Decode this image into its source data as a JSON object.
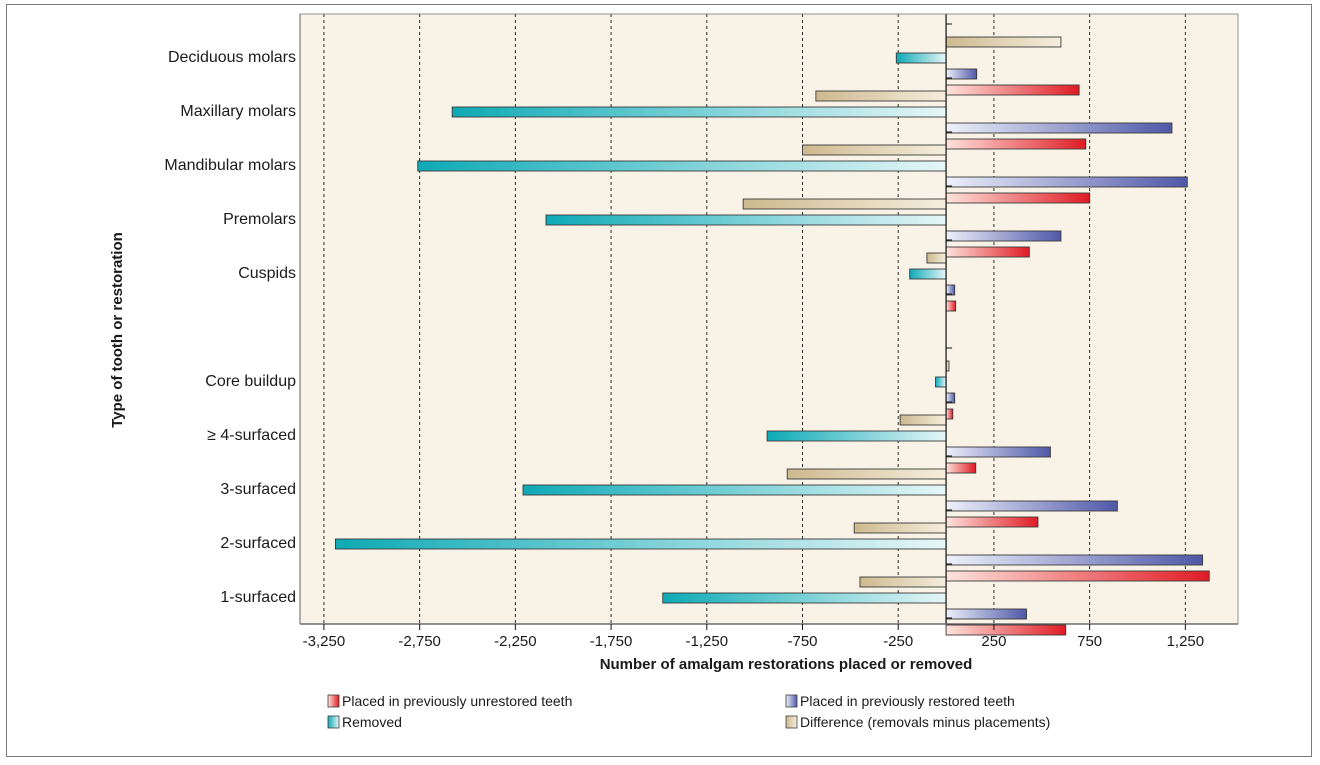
{
  "chart_data": {
    "type": "bar",
    "orientation": "horizontal",
    "xlabel": "Number of amalgam restorations placed or removed",
    "ylabel": "Type of tooth or restoration",
    "xlim": [
      -3375,
      1525
    ],
    "xticks": [
      -3250,
      -2750,
      -2250,
      -1750,
      -1250,
      -750,
      -250,
      250,
      750,
      1250
    ],
    "xtick_labels": [
      "-3,250",
      "-2,750",
      "-2,250",
      "-1,750",
      "-1,250",
      "-750",
      "-250",
      "250",
      "750",
      "1,250"
    ],
    "grid": "vertical dashed at ticks",
    "legend_position": "bottom",
    "categories": [
      {
        "label": "Deciduous molars",
        "slot": 0
      },
      {
        "label": "Maxillary molars",
        "slot": 1
      },
      {
        "label": "Mandibular molars",
        "slot": 2
      },
      {
        "label": "Premolars",
        "slot": 3
      },
      {
        "label": "Cuspids",
        "slot": 4
      },
      {
        "label": "Core buildup",
        "slot": 6
      },
      {
        "label": "≥ 4-surfaced",
        "slot": 7
      },
      {
        "label": "3-surfaced",
        "slot": 8
      },
      {
        "label": "2-surfaced",
        "slot": 9
      },
      {
        "label": "1-surfaced",
        "slot": 10
      }
    ],
    "series": [
      {
        "name": "Difference (removals minus placements)",
        "key": "difference",
        "values": [
          600,
          -680,
          -750,
          -1060,
          -100,
          15,
          -240,
          -830,
          -480,
          -450
        ]
      },
      {
        "name": "Removed",
        "key": "removed",
        "values": [
          -260,
          -2580,
          -2760,
          -2090,
          -190,
          -55,
          -935,
          -2210,
          -3190,
          -1480
        ]
      },
      {
        "name": "Placed in previously restored teeth",
        "key": "restored",
        "values": [
          160,
          1180,
          1260,
          600,
          45,
          45,
          545,
          895,
          1340,
          420
        ]
      },
      {
        "name": "Placed in previously unrestored teeth",
        "key": "unrestored",
        "values": [
          695,
          730,
          750,
          435,
          50,
          35,
          155,
          480,
          1375,
          625
        ]
      }
    ],
    "legend": [
      {
        "label": "Placed in previously unrestored teeth",
        "key": "unrestored"
      },
      {
        "label": "Placed in previously restored teeth",
        "key": "restored"
      },
      {
        "label": "Removed",
        "key": "removed"
      },
      {
        "label": "Difference (removals minus placements)",
        "key": "difference"
      }
    ],
    "colors": {
      "background": "#f8f3e6",
      "unrestored": "#e8202a",
      "restored": "#5a63b0",
      "removed": "#18b0bc",
      "difference": "#d8c7a2",
      "grid": "#2a2a2a"
    }
  }
}
